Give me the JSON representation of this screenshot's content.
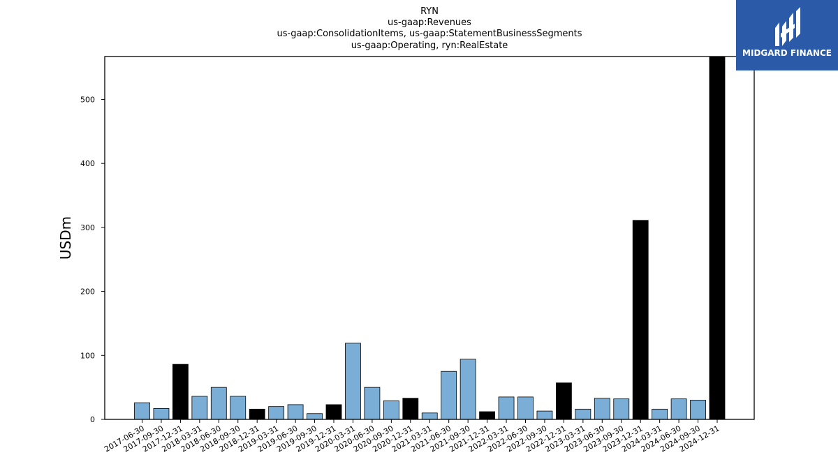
{
  "title_lines": [
    "RYN",
    "us-gaap:Revenues",
    "us-gaap:ConsolidationItems, us-gaap:StatementBusinessSegments",
    "us-gaap:Operating, ryn:RealEstate"
  ],
  "logo": {
    "text": "MIDGARD FINANCE",
    "icon": "midgard-logo-icon",
    "color": "#2a5aa8"
  },
  "colors": {
    "quarter": "#7aaed6",
    "annual": "#000000",
    "edge": "#000000"
  },
  "chart_data": {
    "type": "bar",
    "title": "RYN us-gaap:Revenues us-gaap:ConsolidationItems, us-gaap:StatementBusinessSegments us-gaap:Operating, ryn:RealEstate",
    "xlabel": "",
    "ylabel": "USDm",
    "ylim": [
      0,
      567
    ],
    "yticks": [
      0,
      100,
      200,
      300,
      400,
      500
    ],
    "grid": false,
    "categories": [
      "2017-06-30",
      "2017-09-30",
      "2017-12-31",
      "2018-03-31",
      "2018-06-30",
      "2018-09-30",
      "2018-12-31",
      "2019-03-31",
      "2019-06-30",
      "2019-09-30",
      "2019-12-31",
      "2020-03-31",
      "2020-06-30",
      "2020-09-30",
      "2020-12-31",
      "2021-03-31",
      "2021-06-30",
      "2021-09-30",
      "2021-12-31",
      "2022-03-31",
      "2022-06-30",
      "2022-09-30",
      "2022-12-31",
      "2023-03-31",
      "2023-06-30",
      "2023-09-30",
      "2023-12-31",
      "2024-03-31",
      "2024-06-30",
      "2024-09-30",
      "2024-12-31"
    ],
    "values": [
      26,
      17,
      86,
      36,
      50,
      36,
      16,
      20,
      23,
      9,
      23,
      119,
      50,
      29,
      33,
      10,
      75,
      94,
      12,
      35,
      35,
      13,
      57,
      16,
      33,
      32,
      311,
      16,
      32,
      30,
      570
    ],
    "annual": [
      false,
      false,
      true,
      false,
      false,
      false,
      true,
      false,
      false,
      false,
      true,
      false,
      false,
      false,
      true,
      false,
      false,
      false,
      true,
      false,
      false,
      false,
      true,
      false,
      false,
      false,
      true,
      false,
      false,
      false,
      true
    ]
  }
}
